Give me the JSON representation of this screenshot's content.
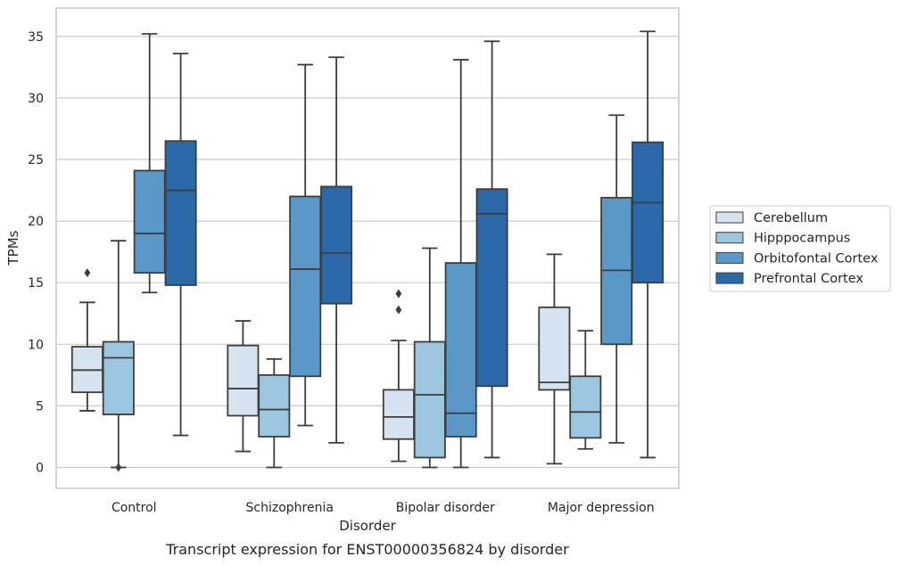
{
  "chart_data": {
    "type": "box",
    "title": "",
    "caption": "Transcript expression for ENST00000356824 by disorder",
    "xlabel": "Disorder",
    "ylabel": "TPMs",
    "ylim": [
      -1.7,
      37.3
    ],
    "yticks": [
      0,
      5,
      10,
      15,
      20,
      25,
      30,
      35
    ],
    "grid": "horizontal",
    "legend_position": "right",
    "categories": [
      "Control",
      "Schizophrenia",
      "Bipolar disorder",
      "Major depression"
    ],
    "series": [
      {
        "name": "Cerebellum",
        "color": "#d6e4f2",
        "boxes": [
          {
            "min": 4.6,
            "q1": 6.1,
            "median": 7.9,
            "q3": 9.8,
            "max": 13.4,
            "outliers": [
              15.8
            ]
          },
          {
            "min": 1.3,
            "q1": 4.2,
            "median": 6.4,
            "q3": 9.9,
            "max": 11.9,
            "outliers": []
          },
          {
            "min": 0.5,
            "q1": 2.3,
            "median": 4.1,
            "q3": 6.3,
            "max": 10.3,
            "outliers": [
              12.8,
              14.1
            ]
          },
          {
            "min": 0.3,
            "q1": 6.3,
            "median": 6.9,
            "q3": 13.0,
            "max": 17.3,
            "outliers": []
          }
        ]
      },
      {
        "name": "Hipppocampus",
        "color": "#9dc7e0",
        "boxes": [
          {
            "min": 0.0,
            "q1": 4.3,
            "median": 8.9,
            "q3": 10.2,
            "max": 18.4,
            "outliers": [
              0.0
            ]
          },
          {
            "min": 0.0,
            "q1": 2.5,
            "median": 4.7,
            "q3": 7.5,
            "max": 8.8,
            "outliers": []
          },
          {
            "min": 0.0,
            "q1": 0.8,
            "median": 5.9,
            "q3": 10.2,
            "max": 17.8,
            "outliers": []
          },
          {
            "min": 1.5,
            "q1": 2.4,
            "median": 4.5,
            "q3": 7.4,
            "max": 11.1,
            "outliers": []
          }
        ]
      },
      {
        "name": "Orbitofontal Cortex",
        "color": "#5a98c7",
        "boxes": [
          {
            "min": 14.2,
            "q1": 15.8,
            "median": 19.0,
            "q3": 24.1,
            "max": 35.2,
            "outliers": []
          },
          {
            "min": 3.4,
            "q1": 7.4,
            "median": 16.1,
            "q3": 22.0,
            "max": 32.7,
            "outliers": []
          },
          {
            "min": 0.0,
            "q1": 2.5,
            "median": 4.4,
            "q3": 16.6,
            "max": 33.1,
            "outliers": []
          },
          {
            "min": 2.0,
            "q1": 10.0,
            "median": 16.0,
            "q3": 21.9,
            "max": 28.6,
            "outliers": []
          }
        ]
      },
      {
        "name": "Prefrontal Cortex",
        "color": "#2b69a8",
        "boxes": [
          {
            "min": 2.6,
            "q1": 14.8,
            "median": 22.5,
            "q3": 26.5,
            "max": 33.6,
            "outliers": []
          },
          {
            "min": 2.0,
            "q1": 13.3,
            "median": 17.4,
            "q3": 22.8,
            "max": 33.3,
            "outliers": []
          },
          {
            "min": 0.8,
            "q1": 6.6,
            "median": 20.6,
            "q3": 22.6,
            "max": 34.6,
            "outliers": []
          },
          {
            "min": 0.8,
            "q1": 15.0,
            "median": 21.5,
            "q3": 26.4,
            "max": 35.4,
            "outliers": []
          }
        ]
      }
    ]
  }
}
